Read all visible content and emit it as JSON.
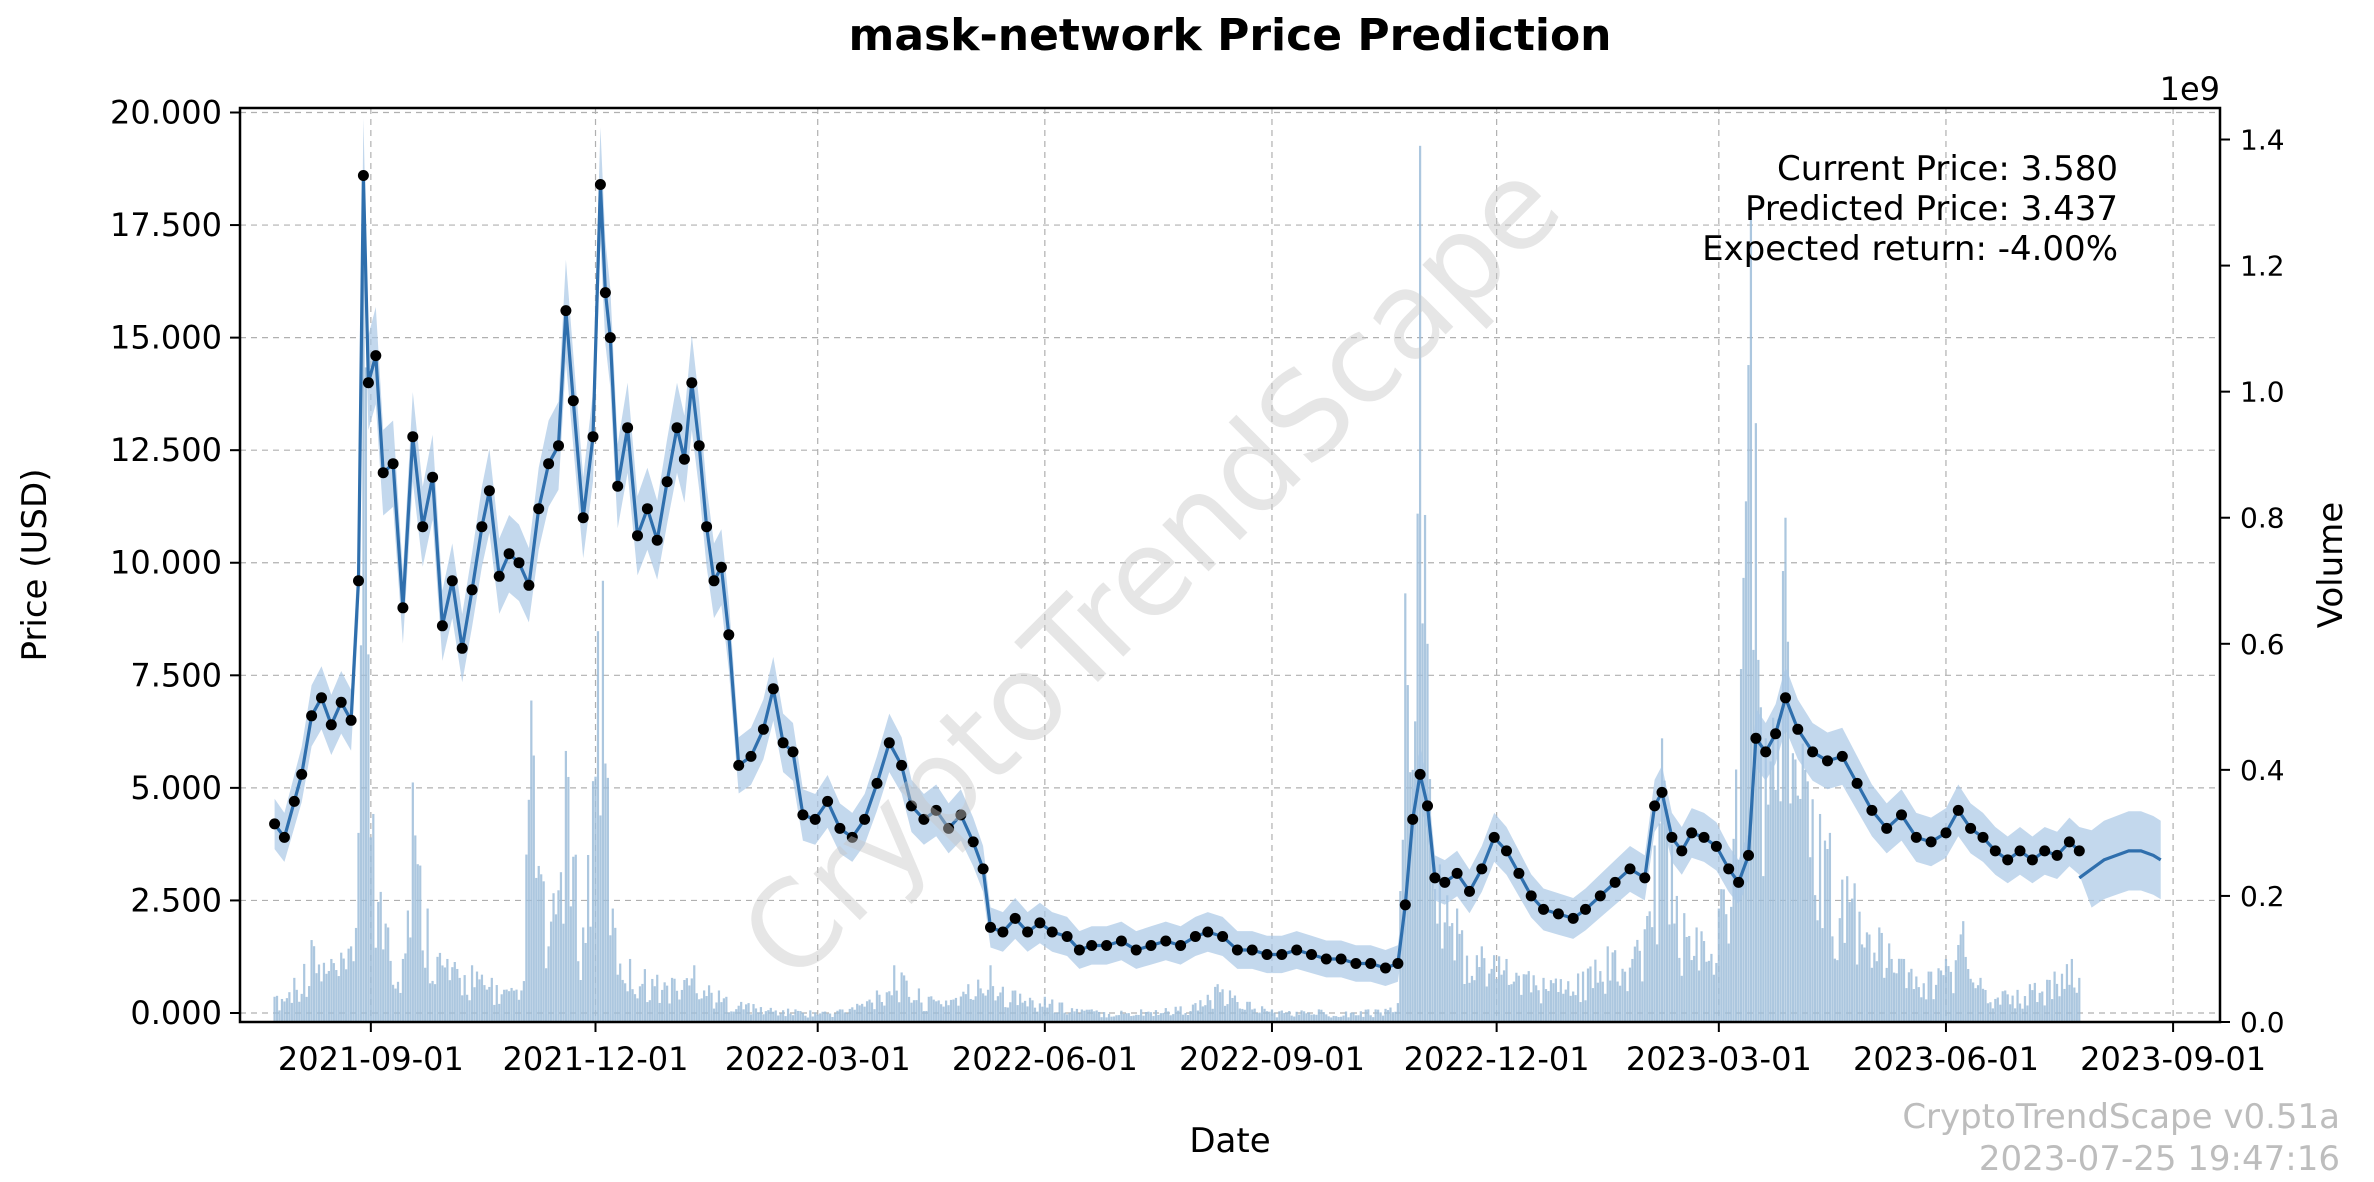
{
  "chart_data": {
    "type": "line",
    "title": "mask-network Price Prediction",
    "xlabel": "Date",
    "ylabel": "Price (USD)",
    "y2label": "Volume",
    "y2_exponent": "1e9",
    "xlim": [
      "2021-07-10",
      "2023-09-20"
    ],
    "ylim": [
      -0.2,
      20.1
    ],
    "y2lim": [
      0,
      1.45
    ],
    "x_ticks": [
      "2021-09-01",
      "2021-12-01",
      "2022-03-01",
      "2022-06-01",
      "2022-09-01",
      "2022-12-01",
      "2023-03-01",
      "2023-06-01",
      "2023-09-01"
    ],
    "y_ticks": [
      "0.000",
      "2.500",
      "5.000",
      "7.500",
      "10.000",
      "12.500",
      "15.000",
      "17.500",
      "20.000"
    ],
    "y2_ticks": [
      "0.0",
      "0.2",
      "0.4",
      "0.6",
      "0.8",
      "1.0",
      "1.2",
      "1.4"
    ],
    "grid": true,
    "colors": {
      "price_line": "#2f6fad",
      "band": "#aac8e6",
      "volume": "#9dbdd9",
      "points": "#000000"
    },
    "price_series": [
      [
        "2021-07-24",
        4.2
      ],
      [
        "2021-07-28",
        3.9
      ],
      [
        "2021-08-01",
        4.7
      ],
      [
        "2021-08-04",
        5.3
      ],
      [
        "2021-08-08",
        6.6
      ],
      [
        "2021-08-12",
        7.0
      ],
      [
        "2021-08-16",
        6.4
      ],
      [
        "2021-08-20",
        6.9
      ],
      [
        "2021-08-24",
        6.5
      ],
      [
        "2021-08-27",
        9.6
      ],
      [
        "2021-08-29",
        18.6
      ],
      [
        "2021-08-31",
        14.0
      ],
      [
        "2021-09-03",
        14.6
      ],
      [
        "2021-09-06",
        12.0
      ],
      [
        "2021-09-10",
        12.2
      ],
      [
        "2021-09-14",
        9.0
      ],
      [
        "2021-09-18",
        12.8
      ],
      [
        "2021-09-22",
        10.8
      ],
      [
        "2021-09-26",
        11.9
      ],
      [
        "2021-09-30",
        8.6
      ],
      [
        "2021-10-04",
        9.6
      ],
      [
        "2021-10-08",
        8.1
      ],
      [
        "2021-10-12",
        9.4
      ],
      [
        "2021-10-16",
        10.8
      ],
      [
        "2021-10-19",
        11.6
      ],
      [
        "2021-10-23",
        9.7
      ],
      [
        "2021-10-27",
        10.2
      ],
      [
        "2021-10-31",
        10.0
      ],
      [
        "2021-11-04",
        9.5
      ],
      [
        "2021-11-08",
        11.2
      ],
      [
        "2021-11-12",
        12.2
      ],
      [
        "2021-11-16",
        12.6
      ],
      [
        "2021-11-19",
        15.6
      ],
      [
        "2021-11-22",
        13.6
      ],
      [
        "2021-11-26",
        11.0
      ],
      [
        "2021-11-30",
        12.8
      ],
      [
        "2021-12-03",
        18.4
      ],
      [
        "2021-12-05",
        16.0
      ],
      [
        "2021-12-07",
        15.0
      ],
      [
        "2021-12-10",
        11.7
      ],
      [
        "2021-12-14",
        13.0
      ],
      [
        "2021-12-18",
        10.6
      ],
      [
        "2021-12-22",
        11.2
      ],
      [
        "2021-12-26",
        10.5
      ],
      [
        "2021-12-30",
        11.8
      ],
      [
        "2022-01-03",
        13.0
      ],
      [
        "2022-01-06",
        12.3
      ],
      [
        "2022-01-09",
        14.0
      ],
      [
        "2022-01-12",
        12.6
      ],
      [
        "2022-01-15",
        10.8
      ],
      [
        "2022-01-18",
        9.6
      ],
      [
        "2022-01-21",
        9.9
      ],
      [
        "2022-01-24",
        8.4
      ],
      [
        "2022-01-28",
        5.5
      ],
      [
        "2022-02-02",
        5.7
      ],
      [
        "2022-02-07",
        6.3
      ],
      [
        "2022-02-11",
        7.2
      ],
      [
        "2022-02-15",
        6.0
      ],
      [
        "2022-02-19",
        5.8
      ],
      [
        "2022-02-23",
        4.4
      ],
      [
        "2022-02-28",
        4.3
      ],
      [
        "2022-03-05",
        4.7
      ],
      [
        "2022-03-10",
        4.1
      ],
      [
        "2022-03-15",
        3.9
      ],
      [
        "2022-03-20",
        4.3
      ],
      [
        "2022-03-25",
        5.1
      ],
      [
        "2022-03-30",
        6.0
      ],
      [
        "2022-04-04",
        5.5
      ],
      [
        "2022-04-08",
        4.6
      ],
      [
        "2022-04-13",
        4.3
      ],
      [
        "2022-04-18",
        4.5
      ],
      [
        "2022-04-23",
        4.1
      ],
      [
        "2022-04-28",
        4.4
      ],
      [
        "2022-05-03",
        3.8
      ],
      [
        "2022-05-07",
        3.2
      ],
      [
        "2022-05-10",
        1.9
      ],
      [
        "2022-05-15",
        1.8
      ],
      [
        "2022-05-20",
        2.1
      ],
      [
        "2022-05-25",
        1.8
      ],
      [
        "2022-05-30",
        2.0
      ],
      [
        "2022-06-04",
        1.8
      ],
      [
        "2022-06-10",
        1.7
      ],
      [
        "2022-06-15",
        1.4
      ],
      [
        "2022-06-20",
        1.5
      ],
      [
        "2022-06-26",
        1.5
      ],
      [
        "2022-07-02",
        1.6
      ],
      [
        "2022-07-08",
        1.4
      ],
      [
        "2022-07-14",
        1.5
      ],
      [
        "2022-07-20",
        1.6
      ],
      [
        "2022-07-26",
        1.5
      ],
      [
        "2022-08-01",
        1.7
      ],
      [
        "2022-08-06",
        1.8
      ],
      [
        "2022-08-12",
        1.7
      ],
      [
        "2022-08-18",
        1.4
      ],
      [
        "2022-08-24",
        1.4
      ],
      [
        "2022-08-30",
        1.3
      ],
      [
        "2022-09-05",
        1.3
      ],
      [
        "2022-09-11",
        1.4
      ],
      [
        "2022-09-17",
        1.3
      ],
      [
        "2022-09-23",
        1.2
      ],
      [
        "2022-09-29",
        1.2
      ],
      [
        "2022-10-05",
        1.1
      ],
      [
        "2022-10-11",
        1.1
      ],
      [
        "2022-10-17",
        1.0
      ],
      [
        "2022-10-22",
        1.1
      ],
      [
        "2022-10-25",
        2.4
      ],
      [
        "2022-10-28",
        4.3
      ],
      [
        "2022-10-31",
        5.3
      ],
      [
        "2022-11-03",
        4.6
      ],
      [
        "2022-11-06",
        3.0
      ],
      [
        "2022-11-10",
        2.9
      ],
      [
        "2022-11-15",
        3.1
      ],
      [
        "2022-11-20",
        2.7
      ],
      [
        "2022-11-25",
        3.2
      ],
      [
        "2022-11-30",
        3.9
      ],
      [
        "2022-12-05",
        3.6
      ],
      [
        "2022-12-10",
        3.1
      ],
      [
        "2022-12-15",
        2.6
      ],
      [
        "2022-12-20",
        2.3
      ],
      [
        "2022-12-26",
        2.2
      ],
      [
        "2023-01-01",
        2.1
      ],
      [
        "2023-01-06",
        2.3
      ],
      [
        "2023-01-12",
        2.6
      ],
      [
        "2023-01-18",
        2.9
      ],
      [
        "2023-01-24",
        3.2
      ],
      [
        "2023-01-30",
        3.0
      ],
      [
        "2023-02-03",
        4.6
      ],
      [
        "2023-02-06",
        4.9
      ],
      [
        "2023-02-10",
        3.9
      ],
      [
        "2023-02-14",
        3.6
      ],
      [
        "2023-02-18",
        4.0
      ],
      [
        "2023-02-23",
        3.9
      ],
      [
        "2023-02-28",
        3.7
      ],
      [
        "2023-03-05",
        3.2
      ],
      [
        "2023-03-09",
        2.9
      ],
      [
        "2023-03-13",
        3.5
      ],
      [
        "2023-03-16",
        6.1
      ],
      [
        "2023-03-20",
        5.8
      ],
      [
        "2023-03-24",
        6.2
      ],
      [
        "2023-03-28",
        7.0
      ],
      [
        "2023-04-02",
        6.3
      ],
      [
        "2023-04-08",
        5.8
      ],
      [
        "2023-04-14",
        5.6
      ],
      [
        "2023-04-20",
        5.7
      ],
      [
        "2023-04-26",
        5.1
      ],
      [
        "2023-05-02",
        4.5
      ],
      [
        "2023-05-08",
        4.1
      ],
      [
        "2023-05-14",
        4.4
      ],
      [
        "2023-05-20",
        3.9
      ],
      [
        "2023-05-26",
        3.8
      ],
      [
        "2023-06-01",
        4.0
      ],
      [
        "2023-06-06",
        4.5
      ],
      [
        "2023-06-11",
        4.1
      ],
      [
        "2023-06-16",
        3.9
      ],
      [
        "2023-06-21",
        3.6
      ],
      [
        "2023-06-26",
        3.4
      ],
      [
        "2023-07-01",
        3.6
      ],
      [
        "2023-07-06",
        3.4
      ],
      [
        "2023-07-11",
        3.6
      ],
      [
        "2023-07-16",
        3.5
      ],
      [
        "2023-07-21",
        3.8
      ],
      [
        "2023-07-25",
        3.6
      ]
    ],
    "forecast_series": [
      [
        "2023-07-25",
        3.0
      ],
      [
        "2023-07-30",
        3.2
      ],
      [
        "2023-08-04",
        3.4
      ],
      [
        "2023-08-09",
        3.5
      ],
      [
        "2023-08-14",
        3.6
      ],
      [
        "2023-08-19",
        3.6
      ],
      [
        "2023-08-24",
        3.5
      ],
      [
        "2023-08-27",
        3.4
      ]
    ],
    "volume_series": [
      [
        "2021-07-24",
        0.04
      ],
      [
        "2021-08-01",
        0.07
      ],
      [
        "2021-08-08",
        0.13
      ],
      [
        "2021-08-16",
        0.1
      ],
      [
        "2021-08-24",
        0.12
      ],
      [
        "2021-08-27",
        0.3
      ],
      [
        "2021-08-29",
        1.35
      ],
      [
        "2021-09-02",
        0.33
      ],
      [
        "2021-09-08",
        0.15
      ],
      [
        "2021-09-14",
        0.1
      ],
      [
        "2021-09-18",
        0.38
      ],
      [
        "2021-09-24",
        0.18
      ],
      [
        "2021-10-02",
        0.1
      ],
      [
        "2021-10-12",
        0.09
      ],
      [
        "2021-10-20",
        0.07
      ],
      [
        "2021-11-01",
        0.05
      ],
      [
        "2021-11-05",
        0.51
      ],
      [
        "2021-11-12",
        0.12
      ],
      [
        "2021-11-19",
        0.43
      ],
      [
        "2021-11-26",
        0.15
      ],
      [
        "2021-12-02",
        0.62
      ],
      [
        "2021-12-04",
        0.7
      ],
      [
        "2021-12-08",
        0.18
      ],
      [
        "2021-12-15",
        0.1
      ],
      [
        "2022-01-01",
        0.07
      ],
      [
        "2022-01-10",
        0.09
      ],
      [
        "2022-01-20",
        0.05
      ],
      [
        "2022-02-01",
        0.03
      ],
      [
        "2022-02-20",
        0.02
      ],
      [
        "2022-03-10",
        0.02
      ],
      [
        "2022-03-25",
        0.05
      ],
      [
        "2022-04-01",
        0.09
      ],
      [
        "2022-04-15",
        0.04
      ],
      [
        "2022-05-01",
        0.06
      ],
      [
        "2022-05-10",
        0.09
      ],
      [
        "2022-05-20",
        0.05
      ],
      [
        "2022-06-01",
        0.04
      ],
      [
        "2022-06-20",
        0.02
      ],
      [
        "2022-07-10",
        0.02
      ],
      [
        "2022-08-01",
        0.03
      ],
      [
        "2022-08-10",
        0.06
      ],
      [
        "2022-09-01",
        0.02
      ],
      [
        "2022-09-20",
        0.02
      ],
      [
        "2022-10-10",
        0.02
      ],
      [
        "2022-10-22",
        0.03
      ],
      [
        "2022-10-25",
        0.68
      ],
      [
        "2022-10-28",
        0.4
      ],
      [
        "2022-10-31",
        1.39
      ],
      [
        "2022-11-03",
        0.6
      ],
      [
        "2022-11-08",
        0.25
      ],
      [
        "2022-11-15",
        0.18
      ],
      [
        "2022-11-25",
        0.12
      ],
      [
        "2022-12-05",
        0.1
      ],
      [
        "2022-12-20",
        0.07
      ],
      [
        "2023-01-05",
        0.08
      ],
      [
        "2023-01-15",
        0.12
      ],
      [
        "2023-01-25",
        0.1
      ],
      [
        "2023-02-03",
        0.28
      ],
      [
        "2023-02-06",
        0.45
      ],
      [
        "2023-02-12",
        0.2
      ],
      [
        "2023-02-20",
        0.15
      ],
      [
        "2023-03-01",
        0.18
      ],
      [
        "2023-03-10",
        0.56
      ],
      [
        "2023-03-14",
        1.3
      ],
      [
        "2023-03-16",
        0.95
      ],
      [
        "2023-03-20",
        0.45
      ],
      [
        "2023-03-28",
        0.8
      ],
      [
        "2023-04-05",
        0.4
      ],
      [
        "2023-04-15",
        0.3
      ],
      [
        "2023-04-25",
        0.22
      ],
      [
        "2023-05-05",
        0.15
      ],
      [
        "2023-05-15",
        0.1
      ],
      [
        "2023-05-25",
        0.08
      ],
      [
        "2023-06-01",
        0.1
      ],
      [
        "2023-06-08",
        0.16
      ],
      [
        "2023-06-15",
        0.07
      ],
      [
        "2023-06-25",
        0.05
      ],
      [
        "2023-07-05",
        0.06
      ],
      [
        "2023-07-15",
        0.08
      ],
      [
        "2023-07-22",
        0.1
      ],
      [
        "2023-07-25",
        0.07
      ]
    ],
    "annotations": {
      "current_price": "Current Price: 3.580",
      "predicted_price": "Predicted Price: 3.437",
      "expected_return": "Expected return: -4.00%"
    },
    "watermark": "CryptoTrendScape",
    "footer_version": "CryptoTrendScape v0.51a",
    "footer_timestamp": "2023-07-25 19:47:16"
  }
}
